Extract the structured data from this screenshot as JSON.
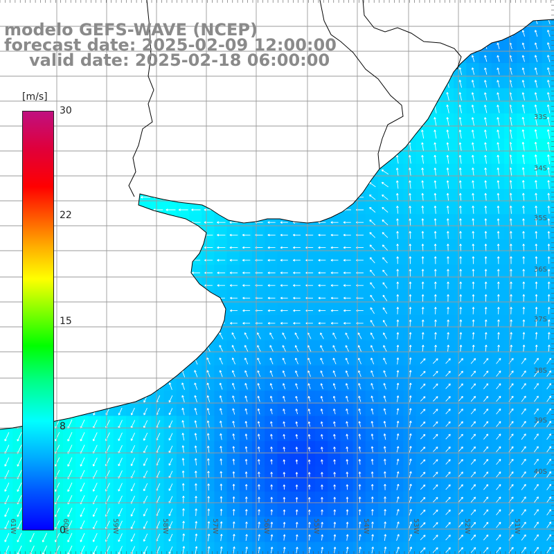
{
  "title": {
    "line1": "modelo GEFS-WAVE (NCEP)",
    "line2": "forecast date: 2025-02-09 12:00:00",
    "line3": "valid date: 2025-02-18 06:00:00"
  },
  "colorbar": {
    "unit": "[m/s]",
    "ticks": [
      "30",
      "22",
      "15",
      "8",
      "0"
    ],
    "min": 0,
    "max": 30,
    "colors": [
      "#0000ff",
      "#00ffff",
      "#00ff00",
      "#ffff00",
      "#ff0000",
      "#c01080"
    ]
  },
  "lat_labels": [
    "33S",
    "34S",
    "35S",
    "36S",
    "37S",
    "38S",
    "39S",
    "40S"
  ],
  "lon_labels": [
    "61W",
    "60W",
    "59W",
    "58W",
    "57W",
    "56W",
    "55W",
    "54W",
    "53W",
    "52W",
    "51W"
  ],
  "colors": {
    "land": "#ffffff",
    "coastline": "#000000",
    "grid": "#9a9a9a",
    "arrows": "#ffffff",
    "title": "#8a8a8a"
  }
}
